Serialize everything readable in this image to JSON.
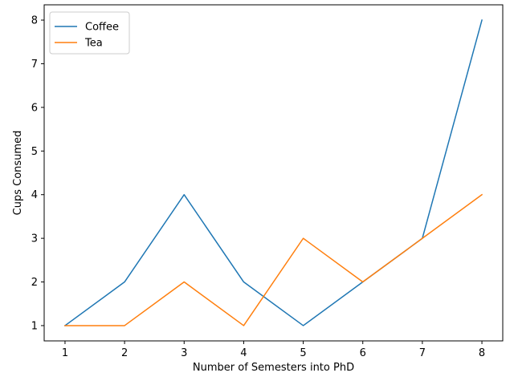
{
  "chart_data": {
    "type": "line",
    "x": [
      1,
      2,
      3,
      4,
      5,
      6,
      7,
      8
    ],
    "series": [
      {
        "name": "Coffee",
        "values": [
          1,
          2,
          4,
          2,
          1,
          2,
          3,
          8
        ],
        "color": "#1f77b4"
      },
      {
        "name": "Tea",
        "values": [
          1,
          1,
          2,
          1,
          3,
          2,
          3,
          4
        ],
        "color": "#ff7f0e"
      }
    ],
    "title": "",
    "xlabel": "Number of Semesters into PhD",
    "ylabel": "Cups Consumed",
    "xticks": [
      1,
      2,
      3,
      4,
      5,
      6,
      7,
      8
    ],
    "yticks": [
      1,
      2,
      3,
      4,
      5,
      6,
      7,
      8
    ],
    "xlim": [
      0.65,
      8.35
    ],
    "ylim": [
      0.65,
      8.35
    ],
    "grid": false,
    "legend_position": "upper left"
  }
}
